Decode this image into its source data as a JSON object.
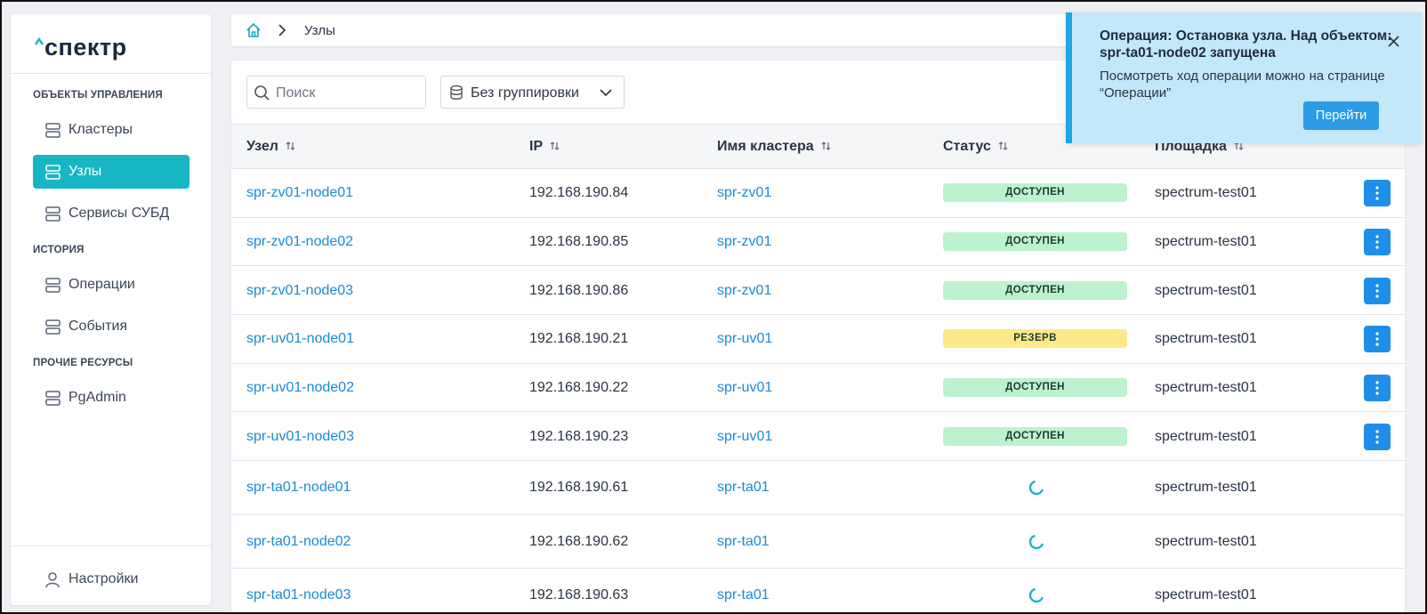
{
  "logo": "спектр",
  "sidebar": {
    "sections": [
      {
        "title": "ОБЪЕКТЫ УПРАВЛЕНИЯ",
        "items": [
          {
            "label": "Кластеры"
          },
          {
            "label": "Узлы",
            "active": true
          },
          {
            "label": "Сервисы СУБД"
          }
        ]
      },
      {
        "title": "ИСТОРИЯ",
        "items": [
          {
            "label": "Операции"
          },
          {
            "label": "События"
          }
        ]
      },
      {
        "title": "ПРОЧИЕ РЕСУРСЫ",
        "items": [
          {
            "label": "PgAdmin"
          }
        ]
      }
    ],
    "settings": "Настройки"
  },
  "breadcrumb": "Узлы",
  "toolbar": {
    "search_placeholder": "Поиск",
    "grouping": "Без группировки"
  },
  "table": {
    "columns": [
      "Узел",
      "IP",
      "Имя кластера",
      "Статус",
      "Площадка"
    ],
    "rows": [
      [
        "spr-zv01-node01",
        "192.168.190.84",
        "spr-zv01",
        {
          "label": "ДОСТУПЕН",
          "color": "#bdf2cf"
        },
        "spectrum-test01"
      ],
      [
        "spr-zv01-node02",
        "192.168.190.85",
        "spr-zv01",
        {
          "label": "ДОСТУПЕН",
          "color": "#bdf2cf"
        },
        "spectrum-test01"
      ],
      [
        "spr-zv01-node03",
        "192.168.190.86",
        "spr-zv01",
        {
          "label": "ДОСТУПЕН",
          "color": "#bdf2cf"
        },
        "spectrum-test01"
      ],
      [
        "spr-uv01-node01",
        "192.168.190.21",
        "spr-uv01",
        {
          "label": "РЕЗЕРВ",
          "color": "#fde98a"
        },
        "spectrum-test01"
      ],
      [
        "spr-uv01-node02",
        "192.168.190.22",
        "spr-uv01",
        {
          "label": "ДОСТУПЕН",
          "color": "#bdf2cf"
        },
        "spectrum-test01"
      ],
      [
        "spr-uv01-node03",
        "192.168.190.23",
        "spr-uv01",
        {
          "label": "ДОСТУПЕН",
          "color": "#bdf2cf"
        },
        "spectrum-test01"
      ],
      [
        "spr-ta01-node01",
        "192.168.190.61",
        "spr-ta01",
        null,
        "spectrum-test01"
      ],
      [
        "spr-ta01-node02",
        "192.168.190.62",
        "spr-ta01",
        null,
        "spectrum-test01"
      ],
      [
        "spr-ta01-node03",
        "192.168.190.63",
        "spr-ta01",
        null,
        "spectrum-test01"
      ]
    ]
  },
  "notification": {
    "title": "Операция: Остановка узла. Над объектом: spr-ta01-node02 запущена",
    "body": "Посмотреть ход операции можно на странице “Операции”",
    "button": "Перейти"
  }
}
